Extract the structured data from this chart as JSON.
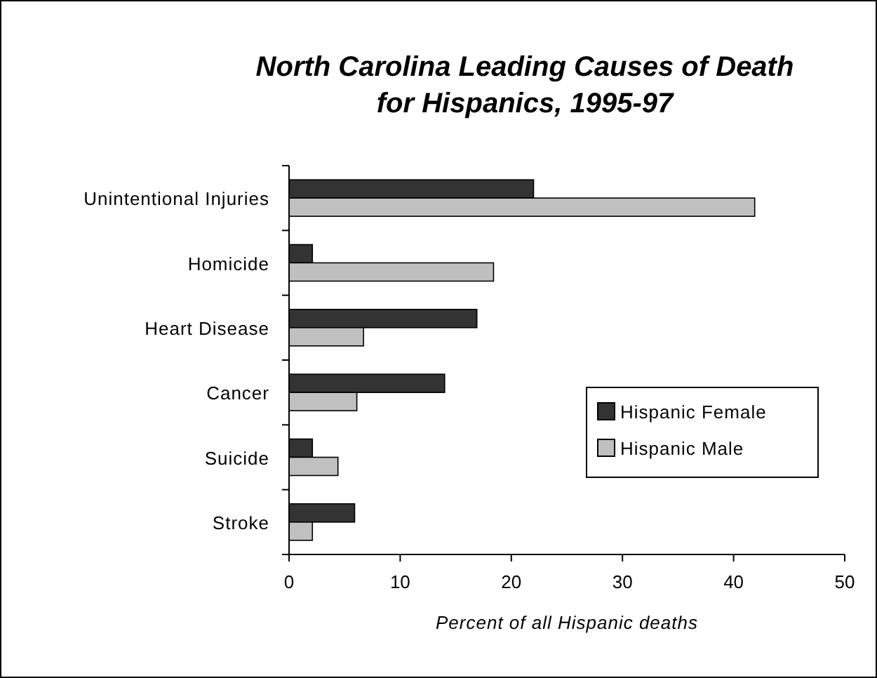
{
  "chart_data": {
    "type": "bar",
    "orientation": "horizontal",
    "title": "North Carolina Leading Causes of Death\nfor Hispanics, 1995-97",
    "xlabel": "Percent of all Hispanic deaths",
    "categories": [
      "Unintentional Injuries",
      "Homicide",
      "Heart Disease",
      "Cancer",
      "Suicide",
      "Stroke"
    ],
    "series": [
      {
        "name": "Hispanic Female",
        "color": "#333333",
        "values": [
          22,
          2.1,
          16.9,
          14,
          2.1,
          5.9
        ]
      },
      {
        "name": "Hispanic Male",
        "color": "#c0c0c0",
        "values": [
          41.9,
          18.4,
          6.7,
          6.1,
          4.4,
          2.1
        ]
      }
    ],
    "xlim": [
      0,
      50
    ],
    "xticks": [
      0,
      10,
      20,
      30,
      40,
      50
    ],
    "grid": false,
    "legend": "right"
  }
}
